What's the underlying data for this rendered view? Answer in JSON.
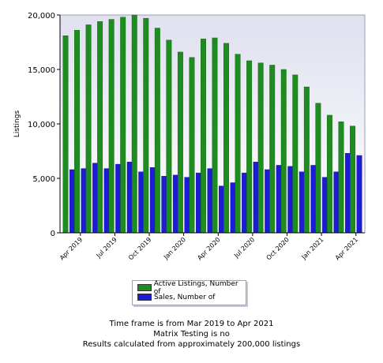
{
  "chart_data": {
    "type": "bar",
    "ylabel": "Listings",
    "ylim": [
      0,
      20000
    ],
    "yticks": [
      "0",
      "5,000",
      "10,000",
      "15,000",
      "20,000"
    ],
    "ytick_values": [
      0,
      5000,
      10000,
      15000,
      20000
    ],
    "categories": [
      "Mar 2019",
      "Apr 2019",
      "May 2019",
      "Jun 2019",
      "Jul 2019",
      "Aug 2019",
      "Sep 2019",
      "Oct 2019",
      "Nov 2019",
      "Dec 2019",
      "Jan 2020",
      "Feb 2020",
      "Mar 2020",
      "Apr 2020",
      "May 2020",
      "Jun 2020",
      "Jul 2020",
      "Aug 2020",
      "Sep 2020",
      "Oct 2020",
      "Nov 2020",
      "Dec 2020",
      "Jan 2021",
      "Feb 2021",
      "Mar 2021",
      "Apr 2021"
    ],
    "xtick_labels": [
      "Apr 2019",
      "Jul 2019",
      "Oct 2019",
      "Jan 2020",
      "Apr 2020",
      "Jul 2020",
      "Oct 2020",
      "Jan 2021",
      "Apr 2021"
    ],
    "xtick_category_index": [
      1,
      4,
      7,
      10,
      13,
      16,
      19,
      22,
      25
    ],
    "series": [
      {
        "name": "Active Listings, Number of",
        "color": "#1e8c1e",
        "values": [
          18100,
          18600,
          19100,
          19400,
          19600,
          19800,
          20000,
          19700,
          18800,
          17700,
          16600,
          16100,
          17800,
          17900,
          17400,
          16400,
          15800,
          15600,
          15400,
          15000,
          14500,
          13400,
          11900,
          10800,
          10200,
          9800
        ]
      },
      {
        "name": "Sales, Number of",
        "color": "#1c1cd8",
        "values": [
          5800,
          5900,
          6400,
          5900,
          6300,
          6500,
          5600,
          6000,
          5200,
          5300,
          5100,
          5500,
          5900,
          4300,
          4600,
          5500,
          6500,
          5800,
          6200,
          6100,
          5600,
          6200,
          5100,
          5600,
          7300,
          7100
        ]
      }
    ],
    "grid": false,
    "legend_position": "bottom-center"
  },
  "footer": {
    "line1": "Time frame is from Mar 2019 to Apr 2021",
    "line2": "Matrix Testing is no",
    "line3": "Results calculated from approximately 200,000 listings"
  }
}
